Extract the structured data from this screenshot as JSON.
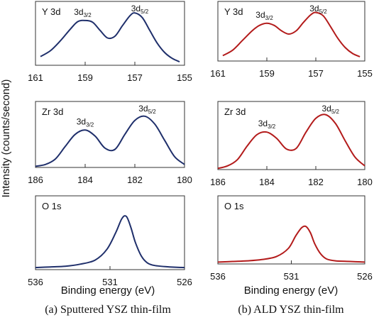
{
  "figure": {
    "ylabel": "Intensity (counts/second)",
    "xlabel": "Binding energy (eV)",
    "captions": [
      "(a) Sputtered YSZ thin-film",
      "(b) ALD YSZ thin-film"
    ]
  },
  "colors": {
    "sputtered": "#1f2f6b",
    "ald": "#b31b1b"
  },
  "chart_data": [
    {
      "type": "line",
      "column": "a",
      "panel_label": "Y 3d",
      "xlim": [
        161,
        155
      ],
      "xticks": [
        161,
        159,
        157,
        155
      ],
      "peak_labels": [
        {
          "main": "3d",
          "sub": "3/2",
          "x": 159.1
        },
        {
          "main": "3d",
          "sub": "5/2",
          "x": 156.8
        }
      ],
      "series": [
        {
          "x": [
            160.8,
            160.4,
            160.0,
            159.6,
            159.3,
            159.0,
            158.7,
            158.4,
            158.1,
            157.8,
            157.5,
            157.2,
            157.0,
            156.7,
            156.4,
            156.1,
            155.8,
            155.5,
            155.2
          ],
          "y": [
            0.15,
            0.25,
            0.42,
            0.62,
            0.75,
            0.77,
            0.74,
            0.6,
            0.47,
            0.5,
            0.68,
            0.85,
            0.9,
            0.82,
            0.6,
            0.38,
            0.22,
            0.12,
            0.06
          ]
        }
      ]
    },
    {
      "type": "line",
      "column": "b",
      "panel_label": "Y 3d",
      "xlim": [
        161,
        155
      ],
      "xticks": [
        161,
        159,
        157,
        155
      ],
      "peak_labels": [
        {
          "main": "3d",
          "sub": "3/2",
          "x": 159.1
        },
        {
          "main": "3d",
          "sub": "5/2",
          "x": 156.9
        }
      ],
      "series": [
        {
          "x": [
            160.8,
            160.4,
            160.0,
            159.6,
            159.3,
            159.0,
            158.7,
            158.4,
            158.1,
            157.8,
            157.5,
            157.2,
            157.0,
            156.7,
            156.4,
            156.1,
            155.8,
            155.5,
            155.2
          ],
          "y": [
            0.1,
            0.2,
            0.38,
            0.56,
            0.66,
            0.7,
            0.66,
            0.56,
            0.5,
            0.56,
            0.72,
            0.86,
            0.9,
            0.84,
            0.64,
            0.42,
            0.25,
            0.14,
            0.08
          ]
        }
      ]
    },
    {
      "type": "line",
      "column": "a",
      "panel_label": "Zr 3d",
      "xlim": [
        186,
        180
      ],
      "xticks": [
        186,
        184,
        182,
        180
      ],
      "peak_labels": [
        {
          "main": "3d",
          "sub": "3/2",
          "x": 184.0
        },
        {
          "main": "3d",
          "sub": "5/2",
          "x": 181.5
        }
      ],
      "series": [
        {
          "x": [
            186.0,
            185.6,
            185.2,
            184.8,
            184.4,
            184.0,
            183.6,
            183.2,
            182.8,
            182.4,
            182.0,
            181.6,
            181.2,
            180.8,
            180.4,
            180.0
          ],
          "y": [
            0.02,
            0.05,
            0.14,
            0.35,
            0.55,
            0.62,
            0.52,
            0.32,
            0.3,
            0.55,
            0.78,
            0.85,
            0.72,
            0.45,
            0.18,
            0.05
          ]
        }
      ]
    },
    {
      "type": "line",
      "column": "b",
      "panel_label": "Zr 3d",
      "xlim": [
        186,
        180
      ],
      "xticks": [
        186,
        184,
        182,
        180
      ],
      "peak_labels": [
        {
          "main": "3d",
          "sub": "3/2",
          "x": 184.0
        },
        {
          "main": "3d",
          "sub": "5/2",
          "x": 181.4
        }
      ],
      "series": [
        {
          "x": [
            186.0,
            185.6,
            185.2,
            184.8,
            184.4,
            184.0,
            183.6,
            183.2,
            182.8,
            182.4,
            182.0,
            181.6,
            181.2,
            180.8,
            180.4,
            180.0
          ],
          "y": [
            0.02,
            0.06,
            0.16,
            0.38,
            0.56,
            0.6,
            0.5,
            0.33,
            0.34,
            0.6,
            0.82,
            0.88,
            0.74,
            0.46,
            0.2,
            0.06
          ]
        }
      ]
    },
    {
      "type": "line",
      "column": "a",
      "panel_label": "O 1s",
      "xlim": [
        536,
        526
      ],
      "xticks": [
        536,
        531,
        526
      ],
      "peak_labels": [],
      "series": [
        {
          "x": [
            536.0,
            535.0,
            534.0,
            533.0,
            532.0,
            531.2,
            530.6,
            530.2,
            529.9,
            529.6,
            529.3,
            528.9,
            528.5,
            528.0,
            527.0,
            526.0
          ],
          "y": [
            0.03,
            0.04,
            0.05,
            0.08,
            0.14,
            0.3,
            0.55,
            0.75,
            0.78,
            0.62,
            0.4,
            0.2,
            0.1,
            0.06,
            0.04,
            0.03
          ]
        }
      ]
    },
    {
      "type": "line",
      "column": "b",
      "panel_label": "O 1s",
      "xlim": [
        536,
        526
      ],
      "xticks": [
        536,
        531,
        526
      ],
      "peak_labels": [],
      "series": [
        {
          "x": [
            536.0,
            535.0,
            534.0,
            533.0,
            532.0,
            531.2,
            530.7,
            530.3,
            530.0,
            529.7,
            529.4,
            529.0,
            528.6,
            528.0,
            527.0,
            526.0
          ],
          "y": [
            0.03,
            0.04,
            0.05,
            0.07,
            0.12,
            0.25,
            0.45,
            0.58,
            0.6,
            0.5,
            0.32,
            0.16,
            0.08,
            0.05,
            0.04,
            0.03
          ]
        }
      ]
    }
  ]
}
